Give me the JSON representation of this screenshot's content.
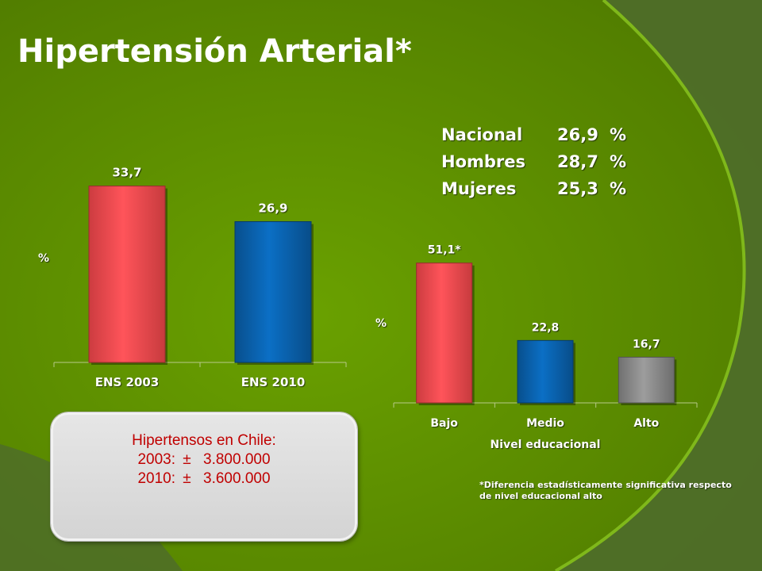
{
  "title": "Hipertensión Arterial*",
  "stats": [
    {
      "label": "Nacional",
      "value": "26,9",
      "unit": "%"
    },
    {
      "label": "Hombres",
      "value": "28,7",
      "unit": "%"
    },
    {
      "label": "Mujeres",
      "value": "25,3",
      "unit": "%"
    }
  ],
  "colors": {
    "red": "#ff4b50",
    "blue": "#0a63b0",
    "gray": "#8c8c8c",
    "background": "#5e8d00"
  },
  "chart_data": [
    {
      "type": "bar",
      "categories": [
        "ENS 2003",
        "ENS 2010"
      ],
      "values": [
        33.7,
        26.9
      ],
      "value_labels": [
        "33,7",
        "26,9"
      ],
      "ylabel": "%",
      "grid": false
    },
    {
      "type": "bar",
      "categories": [
        "Bajo",
        "Medio",
        "Alto"
      ],
      "values": [
        51.1,
        22.8,
        16.7
      ],
      "value_labels": [
        "51,1*",
        "22,8",
        "16,7"
      ],
      "xlabel": "Nivel educacional",
      "ylabel": "%",
      "grid": false
    }
  ],
  "box": {
    "title": "Hipertensos en Chile:",
    "line1_year": "2003:",
    "line1_symbol": "±",
    "line1_value": "3.800.000",
    "line2_year": "2010:",
    "line2_symbol": "±",
    "line2_value": "3.600.000"
  },
  "footnote": "*Diferencia estadísticamente significativa respecto de nivel educacional alto"
}
